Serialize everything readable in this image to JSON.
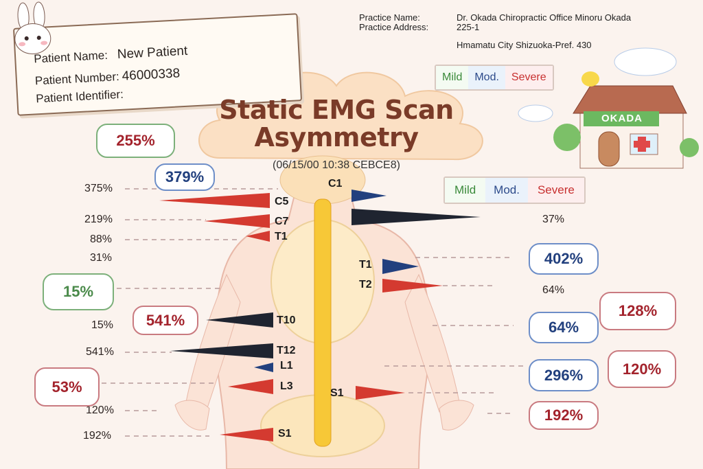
{
  "patient": {
    "name_label": "Patient Name:",
    "name": "New Patient",
    "number_label": "Patient Number:",
    "number": "46000338",
    "identifier_label": "Patient Identifier:",
    "identifier": ""
  },
  "practice": {
    "name_label": "Practice Name:",
    "name": "Dr. Okada Chiropractic Office Minoru Okada",
    "address_label": "Practice Address:",
    "address_line1": "225-1",
    "address_line2": "Hmamatu City Shizuoka-Pref. 430",
    "sign": "OKADA"
  },
  "title": {
    "line1": "Static EMG Scan",
    "line2": "Asymmetry",
    "date": "(06/15/00 10:38 CEBCE8)"
  },
  "legend": {
    "mild": "Mild",
    "moderate": "Mod.",
    "severe": "Severe"
  },
  "colors": {
    "mild": "#3a8a3a",
    "moderate": "#22407e",
    "severe": "#d43a30",
    "black_marker": "#1f2430",
    "title": "#7a3b28"
  },
  "vertebrae": [
    "C1",
    "C5",
    "C7",
    "T1",
    "T1",
    "T2",
    "T10",
    "T12",
    "L1",
    "L3",
    "S1",
    "S1"
  ],
  "markers": [
    {
      "level": "C5",
      "side": "left",
      "color": "severe"
    },
    {
      "level": "C7",
      "side": "left",
      "color": "severe"
    },
    {
      "level": "T1",
      "side": "left",
      "color": "severe"
    },
    {
      "level": "T10",
      "side": "left",
      "color": "black"
    },
    {
      "level": "T12",
      "side": "left",
      "color": "black"
    },
    {
      "level": "L1",
      "side": "left",
      "color": "moderate"
    },
    {
      "level": "L3",
      "side": "left",
      "color": "severe"
    },
    {
      "level": "S1",
      "side": "left",
      "color": "severe"
    },
    {
      "level": "C1",
      "side": "right",
      "color": "moderate"
    },
    {
      "level": "C7",
      "side": "right",
      "color": "black"
    },
    {
      "level": "T1",
      "side": "right",
      "color": "moderate"
    },
    {
      "level": "T2",
      "side": "right",
      "color": "severe"
    },
    {
      "level": "S1",
      "side": "right",
      "color": "severe"
    }
  ],
  "left_values": [
    "375%",
    "219%",
    "88%",
    "31%",
    "15%",
    "541%",
    "120%",
    "192%"
  ],
  "right_values": [
    "37%",
    "64%"
  ],
  "bubbles": {
    "b255": "255%",
    "b379": "379%",
    "b15": "15%",
    "b541": "541%",
    "b53": "53%",
    "b402": "402%",
    "b128": "128%",
    "b64": "64%",
    "b120": "120%",
    "b296": "296%",
    "b192": "192%"
  }
}
